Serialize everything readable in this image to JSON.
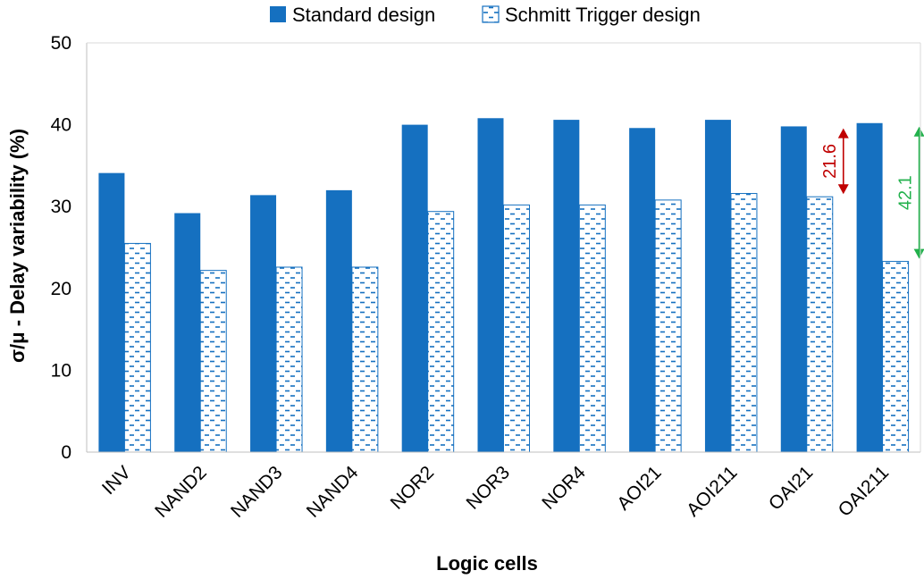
{
  "chart_data": {
    "type": "bar",
    "title": "",
    "xlabel": "Logic cells",
    "ylabel": "σ/μ - Delay variability (%)",
    "ylim": [
      0,
      50
    ],
    "yticks": [
      "0",
      "10",
      "20",
      "30",
      "40",
      "50"
    ],
    "grid": false,
    "legend_position": "top",
    "categories": [
      "INV",
      "NAND2",
      "NAND3",
      "NAND4",
      "NOR2",
      "NOR3",
      "NOR4",
      "AOI21",
      "AOI211",
      "OAI21",
      "OAI211"
    ],
    "series": [
      {
        "name": "Standard design",
        "color": "#1570C0",
        "pattern": "solid",
        "values": [
          34.1,
          29.2,
          31.4,
          32.0,
          40.0,
          40.8,
          40.6,
          39.6,
          40.6,
          39.8,
          40.2
        ]
      },
      {
        "name": "Schmitt Trigger design",
        "color": "#1570C0",
        "pattern": "dashed-fill",
        "values": [
          25.5,
          22.2,
          22.6,
          22.6,
          29.4,
          30.2,
          30.2,
          30.8,
          31.6,
          31.2,
          23.3
        ]
      }
    ],
    "annotations": [
      {
        "label": "21.6",
        "category": "OAI21",
        "from": 40.0,
        "to": 31.2,
        "color": "#C00000"
      },
      {
        "label": "42.1",
        "category": "OAI211",
        "from": 40.2,
        "to": 23.3,
        "color": "#22B14C"
      }
    ]
  }
}
